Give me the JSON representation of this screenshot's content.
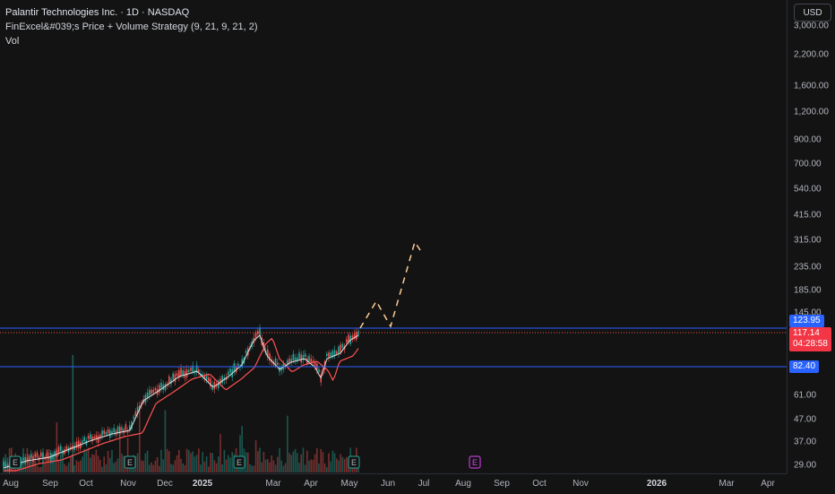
{
  "header": {
    "symbol_line": "Palantir Technologies Inc. · 1D · NASDAQ",
    "strategy_line": "FinExcel&#039;s Price + Volume Strategy (9, 21, 9, 21, 2)",
    "volume_line": "Vol"
  },
  "currency_button": "USD",
  "price_scale": {
    "ticks": [
      "3,000.00",
      "2,200.00",
      "1,600.00",
      "1,200.00",
      "900.00",
      "700.00",
      "540.00",
      "415.00",
      "315.00",
      "235.00",
      "185.00",
      "145.00",
      "61.00",
      "47.00",
      "37.00",
      "29.00"
    ],
    "scale": "log"
  },
  "price_badges": {
    "upper_line": "123.95",
    "last_price": "117.14",
    "countdown": "04:28:58",
    "lower_line": "82.40"
  },
  "time_scale": {
    "labels": [
      "Aug",
      "Sep",
      "Oct",
      "Nov",
      "Dec",
      "2025",
      "Mar",
      "Apr",
      "May",
      "Jun",
      "Jul",
      "Aug",
      "Sep",
      "Oct",
      "Nov",
      "2026",
      "Mar",
      "Apr"
    ]
  },
  "earnings_markers": {
    "label": "E",
    "count_past": 5,
    "count_future": 1
  },
  "colors": {
    "up": "#26a69a",
    "down": "#ef5350",
    "ma_fast": "#f5f5f5",
    "ma_slow": "#ff5252",
    "projection": "#ffcc99",
    "hline": "#2962ff",
    "future_earnings": "#e040fb"
  }
}
